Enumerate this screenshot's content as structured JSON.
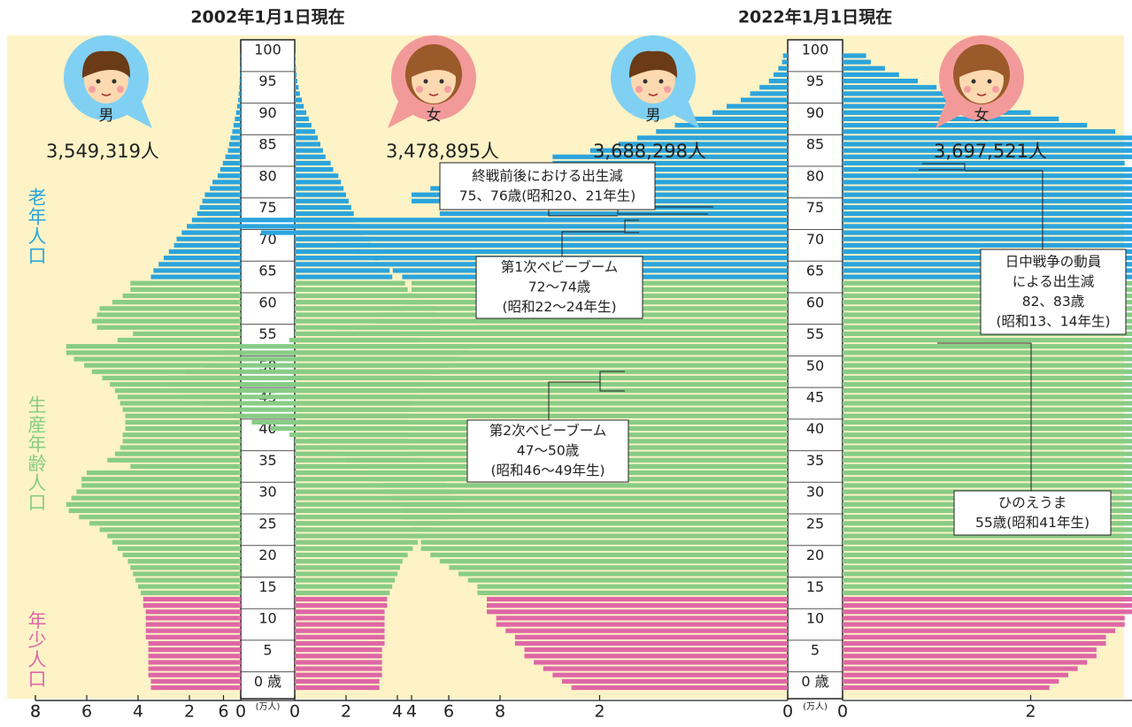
{
  "age_groups": [
    {
      "name": "老年人口",
      "from": 65,
      "to": 100,
      "color": "#2ba4dc"
    },
    {
      "name": "生産年齢人口",
      "from": 15,
      "to": 64,
      "color": "#88cc86"
    },
    {
      "name": "年少人口",
      "from": 0,
      "to": 14,
      "color": "#de67a6"
    }
  ],
  "chart_data": [
    {
      "type": "pyramid",
      "title": "2002年1月1日現在",
      "xunit": "(万人)",
      "xlim": [
        0,
        8
      ],
      "xticks": [
        0,
        2,
        4,
        6,
        8
      ],
      "categories": [
        "0 歳",
        null,
        null,
        null,
        null,
        "5",
        null,
        null,
        null,
        null,
        "10",
        null,
        null,
        null,
        null,
        "15",
        null,
        null,
        null,
        null,
        "20",
        null,
        null,
        null,
        null,
        "25",
        null,
        null,
        null,
        null,
        "30",
        null,
        null,
        null,
        null,
        "35",
        null,
        null,
        null,
        null,
        "40",
        null,
        null,
        null,
        null,
        "45",
        null,
        null,
        null,
        null,
        "50",
        null,
        null,
        null,
        null,
        "55",
        null,
        null,
        null,
        null,
        "60",
        null,
        null,
        null,
        null,
        "65",
        null,
        null,
        null,
        null,
        "70",
        null,
        null,
        null,
        null,
        "75",
        null,
        null,
        null,
        null,
        "80",
        null,
        null,
        null,
        null,
        "85",
        null,
        null,
        null,
        null,
        "90",
        null,
        null,
        null,
        null,
        "95",
        null,
        null,
        null,
        null,
        "100"
      ],
      "series": [
        {
          "name": "男",
          "total_label": "3,549,319人",
          "values": [
            3.5,
            3.5,
            3.6,
            3.6,
            3.6,
            3.6,
            3.6,
            3.6,
            3.7,
            3.7,
            3.7,
            3.7,
            3.7,
            3.8,
            3.8,
            3.9,
            4.0,
            4.1,
            4.2,
            4.3,
            4.4,
            4.6,
            4.8,
            5.0,
            5.2,
            5.5,
            5.9,
            6.3,
            6.7,
            6.8,
            6.6,
            6.4,
            6.2,
            6.2,
            6.0,
            4.3,
            5.2,
            4.9,
            4.7,
            4.6,
            4.6,
            4.5,
            4.5,
            4.5,
            4.6,
            4.7,
            4.8,
            4.9,
            5.1,
            5.4,
            5.8,
            6.1,
            6.5,
            6.8,
            6.8,
            4.8,
            4.2,
            5.6,
            5.8,
            5.6,
            5.5,
            5.0,
            4.6,
            4.3,
            4.3,
            3.5,
            3.4,
            3.2,
            3.0,
            2.8,
            2.6,
            2.5,
            2.3,
            2.1,
            1.9,
            1.7,
            1.6,
            1.5,
            1.4,
            1.2,
            1.1,
            0.9,
            0.8,
            0.7,
            0.6,
            0.5,
            0.45,
            0.4,
            0.33,
            0.28,
            0.23,
            0.18,
            0.14,
            0.1,
            0.08,
            0.06,
            0.04,
            0.03,
            0.02,
            0.01,
            0.01
          ]
        },
        {
          "name": "女",
          "total_label": "3,478,895人",
          "values": [
            3.3,
            3.3,
            3.4,
            3.4,
            3.4,
            3.4,
            3.4,
            3.5,
            3.5,
            3.5,
            3.5,
            3.5,
            3.5,
            3.6,
            3.6,
            3.7,
            3.8,
            3.9,
            4.0,
            4.1,
            4.2,
            4.4,
            4.6,
            4.8,
            5.0,
            5.3,
            5.6,
            6.0,
            6.3,
            6.4,
            6.3,
            6.1,
            5.9,
            5.9,
            5.7,
            4.1,
            5.0,
            4.7,
            4.5,
            4.4,
            4.4,
            4.4,
            4.4,
            4.4,
            4.5,
            4.6,
            4.7,
            4.8,
            5.0,
            5.3,
            5.7,
            6.0,
            6.4,
            6.7,
            6.9,
            4.9,
            4.3,
            5.6,
            5.7,
            5.5,
            5.5,
            5.1,
            4.7,
            4.4,
            4.3,
            3.8,
            3.7,
            3.5,
            3.3,
            3.1,
            3.0,
            2.9,
            2.7,
            2.5,
            2.4,
            2.3,
            2.2,
            2.1,
            2.0,
            1.9,
            1.8,
            1.7,
            1.5,
            1.4,
            1.2,
            1.1,
            1.0,
            0.9,
            0.8,
            0.65,
            0.55,
            0.45,
            0.35,
            0.28,
            0.2,
            0.15,
            0.1,
            0.07,
            0.05,
            0.03,
            0.02
          ]
        }
      ]
    },
    {
      "type": "pyramid",
      "title": "2022年1月1日現在",
      "xunit": "(万人)",
      "xlim": [
        0,
        8
      ],
      "xticks": [
        0,
        2,
        4,
        6,
        8
      ],
      "categories": [
        "0 歳",
        null,
        null,
        null,
        null,
        "5",
        null,
        null,
        null,
        null,
        "10",
        null,
        null,
        null,
        null,
        "15",
        null,
        null,
        null,
        null,
        "20",
        null,
        null,
        null,
        null,
        "25",
        null,
        null,
        null,
        null,
        "30",
        null,
        null,
        null,
        null,
        "35",
        null,
        null,
        null,
        null,
        "40",
        null,
        null,
        null,
        null,
        "45",
        null,
        null,
        null,
        null,
        "50",
        null,
        null,
        null,
        null,
        "55",
        null,
        null,
        null,
        null,
        "60",
        null,
        null,
        null,
        null,
        "65",
        null,
        null,
        null,
        null,
        "70",
        null,
        null,
        null,
        null,
        "75",
        null,
        null,
        null,
        null,
        "80",
        null,
        null,
        null,
        null,
        "85",
        null,
        null,
        null,
        null,
        "90",
        null,
        null,
        null,
        null,
        "95",
        null,
        null,
        null,
        null,
        "100"
      ],
      "series": [
        {
          "name": "男",
          "total_label": "3,688,298人",
          "values": [
            2.3,
            2.4,
            2.5,
            2.6,
            2.7,
            2.8,
            2.8,
            2.9,
            2.9,
            3.0,
            3.1,
            3.1,
            3.2,
            3.2,
            3.2,
            3.3,
            3.3,
            3.4,
            3.5,
            3.6,
            3.7,
            3.8,
            3.9,
            3.9,
            4.0,
            4.0,
            4.0,
            4.1,
            4.1,
            4.1,
            4.2,
            4.3,
            4.3,
            4.4,
            4.5,
            4.6,
            4.7,
            4.8,
            4.9,
            5.1,
            5.3,
            5.5,
            5.7,
            5.9,
            6.0,
            6.2,
            6.4,
            6.5,
            6.6,
            6.6,
            6.4,
            6.2,
            6.1,
            6.0,
            6.0,
            5.3,
            4.8,
            4.6,
            4.4,
            4.3,
            4.2,
            4.1,
            4.1,
            4.0,
            4.0,
            4.1,
            4.2,
            4.3,
            4.4,
            4.6,
            4.8,
            5.2,
            5.6,
            6.3,
            6.2,
            3.7,
            3.0,
            4.0,
            4.0,
            3.8,
            3.5,
            3.3,
            2.2,
            2.5,
            2.5,
            2.1,
            1.8,
            1.6,
            1.4,
            1.2,
            1.0,
            0.8,
            0.65,
            0.5,
            0.4,
            0.3,
            0.2,
            0.15,
            0.1,
            0.06,
            0.05
          ]
        },
        {
          "name": "女",
          "total_label": "3,697,521人",
          "values": [
            2.2,
            2.3,
            2.4,
            2.5,
            2.6,
            2.7,
            2.7,
            2.8,
            2.8,
            2.9,
            3.0,
            3.0,
            3.1,
            3.1,
            3.1,
            3.2,
            3.2,
            3.3,
            3.4,
            3.5,
            3.6,
            3.7,
            3.7,
            3.8,
            3.8,
            3.9,
            3.9,
            3.9,
            4.0,
            4.0,
            4.0,
            4.1,
            4.1,
            4.2,
            4.3,
            4.4,
            4.5,
            4.6,
            4.7,
            4.9,
            5.0,
            5.2,
            5.4,
            5.6,
            5.7,
            5.9,
            6.1,
            6.2,
            6.2,
            6.2,
            6.0,
            5.9,
            5.8,
            5.7,
            5.7,
            3.7,
            5.1,
            4.7,
            4.5,
            4.3,
            4.2,
            4.1,
            4.0,
            4.0,
            4.1,
            4.2,
            4.3,
            4.4,
            4.6,
            4.7,
            5.0,
            5.5,
            6.0,
            6.2,
            6.1,
            4.4,
            3.8,
            4.9,
            5.0,
            4.8,
            4.6,
            4.5,
            3.1,
            3.0,
            4.0,
            3.8,
            3.5,
            3.2,
            2.9,
            2.6,
            2.3,
            2.0,
            1.7,
            1.4,
            1.2,
            1.0,
            0.8,
            0.6,
            0.45,
            0.3,
            0.25
          ]
        }
      ],
      "annotations": [
        {
          "lines": [
            "終戦前後における出生減",
            "75、76歳(昭和20、21年生)"
          ]
        },
        {
          "lines": [
            "第1次ベビーブーム",
            "72〜74歳",
            "(昭和22〜24年生)"
          ]
        },
        {
          "lines": [
            "第2次ベビーブーム",
            "47〜50歳",
            "(昭和46〜49年生)"
          ]
        },
        {
          "lines": [
            "日中戦争の動員",
            "による出生減",
            "82、83歳",
            "(昭和13、14年生)"
          ]
        },
        {
          "lines": [
            "ひのえうま",
            "55歳(昭和41年生)"
          ]
        }
      ]
    }
  ]
}
